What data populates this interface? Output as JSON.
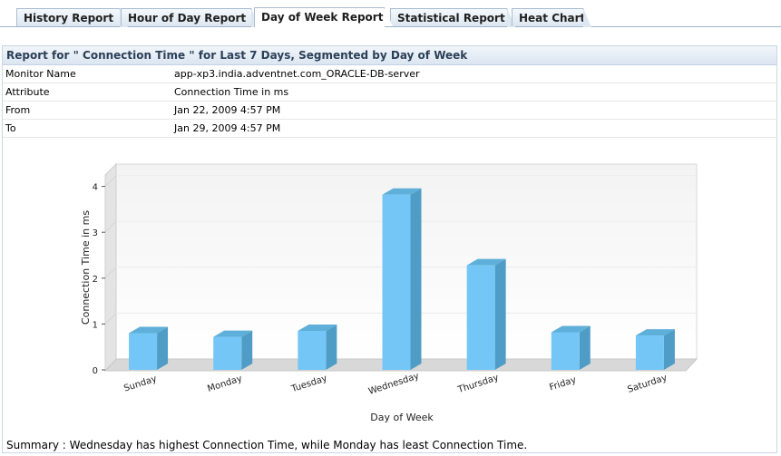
{
  "tabs": [
    {
      "label": "History Report",
      "active": false
    },
    {
      "label": "Hour of Day Report",
      "active": false
    },
    {
      "label": "Day of Week Report",
      "active": true
    },
    {
      "label": "Statistical Report",
      "active": false
    },
    {
      "label": "Heat Chart",
      "active": false
    }
  ],
  "report": {
    "title": "Report for \" Connection Time \" for Last 7 Days, Segmented by Day of Week",
    "rows": [
      {
        "label": "Monitor Name",
        "value": "app-xp3.india.adventnet.com_ORACLE-DB-server"
      },
      {
        "label": "Attribute",
        "value": "Connection Time in ms"
      },
      {
        "label": "From",
        "value": "Jan 22, 2009 4:57 PM"
      },
      {
        "label": "To",
        "value": "Jan 29, 2009 4:57 PM"
      }
    ],
    "summary": "Summary : Wednesday has highest Connection Time, while Monday has least Connection Time."
  },
  "colors": {
    "bar_front": "#74c6f6",
    "bar_side": "#4f9dc6",
    "bar_top": "#5eafd9"
  },
  "chart_data": {
    "type": "bar",
    "categories": [
      "Sunday",
      "Monday",
      "Tuesday",
      "Wednesday",
      "Thursday",
      "Friday",
      "Saturday"
    ],
    "values": [
      0.8,
      0.72,
      0.85,
      3.82,
      2.28,
      0.82,
      0.75
    ],
    "xlabel": "Day of Week",
    "ylabel": "Connection Time in ms",
    "ylim": [
      0,
      4
    ],
    "yticks": [
      0,
      1,
      2,
      3,
      4
    ],
    "grid": true
  }
}
